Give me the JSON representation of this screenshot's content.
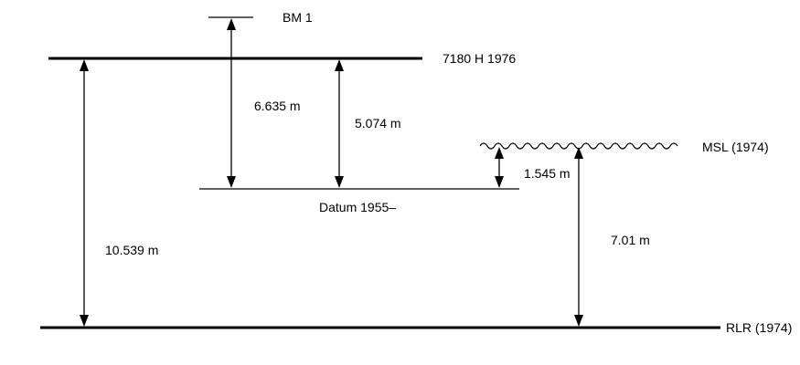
{
  "diagram": {
    "levels": {
      "bm1": "BM 1",
      "nap_1976": "7180 H 1976",
      "datum_1955": "Datum 1955–",
      "msl_1974": "MSL (1974)",
      "rlr_1974": "RLR (1974)"
    },
    "distances": {
      "bm1_to_datum": "6.635 m",
      "nap_to_datum": "5.074 m",
      "msl_to_datum": "1.545 m",
      "msl_to_rlr": "7.01 m",
      "nap_to_rlr": "10.539 m"
    }
  }
}
